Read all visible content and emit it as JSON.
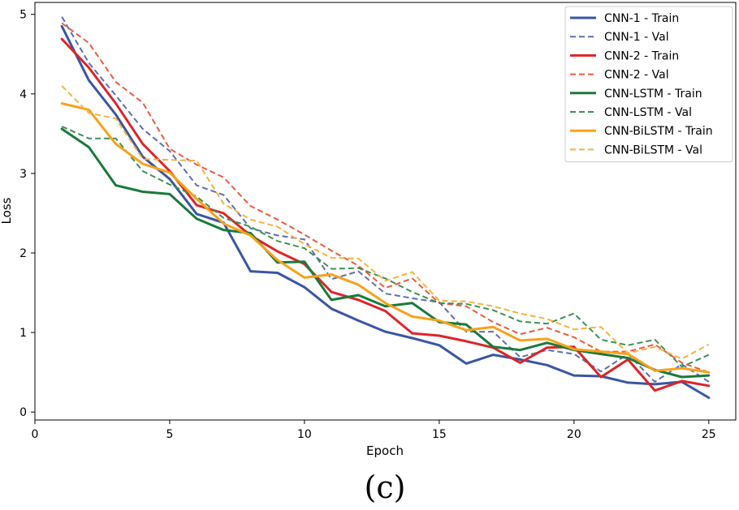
{
  "chart_data": {
    "type": "line",
    "title": "",
    "xlabel": "Epoch",
    "ylabel": "Loss",
    "xlim": [
      0,
      26
    ],
    "ylim": [
      -0.1,
      5.15
    ],
    "xticks": [
      0,
      5,
      10,
      15,
      20,
      25
    ],
    "yticks": [
      0,
      1,
      2,
      3,
      4,
      5
    ],
    "grid": false,
    "legend_position": "top-right",
    "x": [
      1,
      2,
      3,
      4,
      5,
      6,
      7,
      8,
      9,
      10,
      11,
      12,
      13,
      14,
      15,
      16,
      17,
      18,
      19,
      20,
      21,
      22,
      23,
      24,
      25
    ],
    "series": [
      {
        "name": "CNN-1 - Train",
        "color": "#3a56a5",
        "style": "solid",
        "values": [
          4.85,
          4.17,
          3.74,
          3.21,
          2.93,
          2.49,
          2.38,
          1.77,
          1.75,
          1.57,
          1.3,
          1.15,
          1.01,
          0.93,
          0.84,
          0.61,
          0.72,
          0.66,
          0.59,
          0.46,
          0.45,
          0.37,
          0.35,
          0.38,
          0.18
        ]
      },
      {
        "name": "CNN-1 - Val",
        "color": "#5a6fb4",
        "style": "dashed",
        "values": [
          4.97,
          4.39,
          3.98,
          3.56,
          3.28,
          2.85,
          2.73,
          2.31,
          2.22,
          2.17,
          1.67,
          1.77,
          1.49,
          1.43,
          1.38,
          1.01,
          1.01,
          0.69,
          0.78,
          0.73,
          0.51,
          0.73,
          0.38,
          0.6,
          0.38
        ]
      },
      {
        "name": "CNN-2 - Train",
        "color": "#e02327",
        "style": "solid",
        "values": [
          4.69,
          4.33,
          3.88,
          3.37,
          3.03,
          2.6,
          2.5,
          2.22,
          2.02,
          1.86,
          1.51,
          1.41,
          1.27,
          0.99,
          0.96,
          0.89,
          0.81,
          0.62,
          0.81,
          0.82,
          0.44,
          0.66,
          0.27,
          0.39,
          0.33
        ]
      },
      {
        "name": "CNN-2 - Val",
        "color": "#ef5a3d",
        "style": "dashed",
        "values": [
          4.89,
          4.64,
          4.15,
          3.89,
          3.31,
          3.11,
          2.95,
          2.59,
          2.42,
          2.23,
          2.03,
          1.84,
          1.56,
          1.68,
          1.37,
          1.33,
          1.13,
          0.98,
          1.06,
          0.94,
          0.76,
          0.76,
          0.85,
          0.62,
          0.5
        ]
      },
      {
        "name": "CNN-LSTM - Train",
        "color": "#1a7a3a",
        "style": "solid",
        "values": [
          3.56,
          3.33,
          2.85,
          2.77,
          2.74,
          2.43,
          2.29,
          2.25,
          1.88,
          1.89,
          1.41,
          1.47,
          1.33,
          1.37,
          1.13,
          1.1,
          0.82,
          0.78,
          0.87,
          0.78,
          0.73,
          0.68,
          0.53,
          0.44,
          0.46
        ]
      },
      {
        "name": "CNN-LSTM - Val",
        "color": "#3d9150",
        "style": "dashed",
        "values": [
          3.59,
          3.44,
          3.44,
          3.03,
          2.86,
          2.71,
          2.44,
          2.33,
          2.15,
          2.06,
          1.8,
          1.81,
          1.68,
          1.51,
          1.37,
          1.36,
          1.28,
          1.14,
          1.11,
          1.24,
          0.91,
          0.84,
          0.91,
          0.57,
          0.72
        ]
      },
      {
        "name": "CNN-BiLSTM - Train",
        "color": "#f7a21a",
        "style": "solid",
        "values": [
          3.88,
          3.8,
          3.37,
          3.12,
          3.01,
          2.68,
          2.37,
          2.22,
          1.91,
          1.69,
          1.73,
          1.6,
          1.37,
          1.2,
          1.15,
          1.03,
          1.07,
          0.9,
          0.92,
          0.79,
          0.76,
          0.73,
          0.52,
          0.55,
          0.5
        ]
      },
      {
        "name": "CNN-BiLSTM - Val",
        "color": "#f9b23e",
        "style": "dashed",
        "values": [
          4.1,
          3.76,
          3.69,
          3.18,
          3.17,
          3.16,
          2.62,
          2.42,
          2.33,
          2.11,
          1.94,
          1.93,
          1.65,
          1.76,
          1.4,
          1.39,
          1.33,
          1.24,
          1.17,
          1.04,
          1.07,
          0.74,
          0.82,
          0.67,
          0.85
        ]
      }
    ]
  },
  "figure": {
    "caption": "(c)"
  }
}
